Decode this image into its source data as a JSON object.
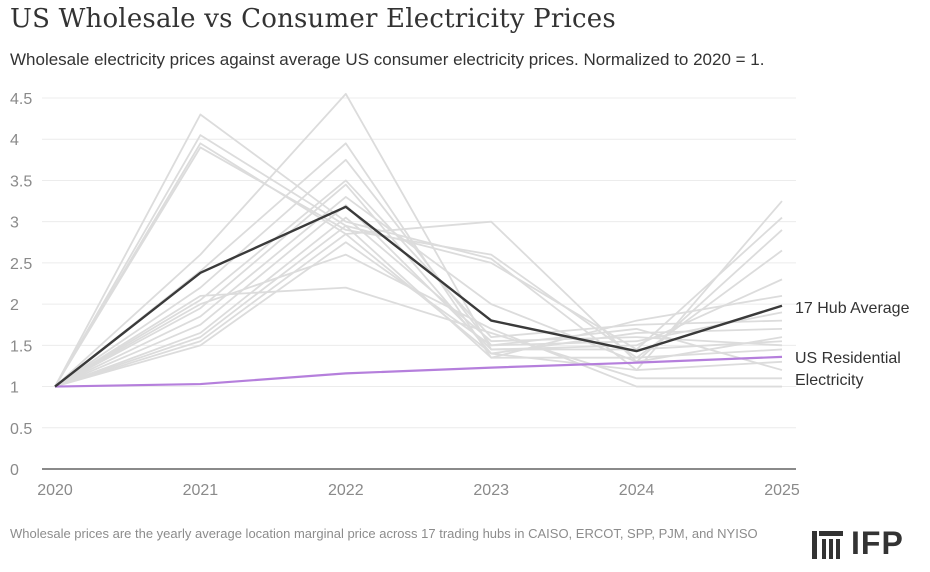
{
  "header": {
    "title": "US Wholesale vs Consumer Electricity Prices",
    "subtitle": "Wholesale electricity prices against average US consumer electricity prices. Normalized to 2020 = 1."
  },
  "footer": {
    "note": "Wholesale prices are the yearly average location marginal price across 17 trading hubs in CAISO, ERCOT, SPP, PJM, and NYISO",
    "logo": "IFP"
  },
  "colors": {
    "hub_lines": "#dcdcdc",
    "average": "#3a3a3a",
    "residential": "#b57fdc",
    "axis_text": "#8a8a8a",
    "grid": "#ececec"
  },
  "chart_data": {
    "type": "line",
    "title": "US Wholesale vs Consumer Electricity Prices",
    "x": [
      "2020",
      "2021",
      "2022",
      "2023",
      "2024",
      "2025"
    ],
    "ylim": [
      0,
      4.5
    ],
    "yticks": [
      "0",
      "0.5",
      "1",
      "1.5",
      "2",
      "2.5",
      "3",
      "3.5",
      "4",
      "4.5"
    ],
    "ytick_values": [
      0,
      0.5,
      1,
      1.5,
      2,
      2.5,
      3,
      3.5,
      4,
      4.5
    ],
    "grid": true,
    "hubs": [
      [
        1,
        4.3,
        3.0,
        2.55,
        1.2,
        3.25
      ],
      [
        1,
        4.05,
        2.95,
        2.5,
        1.45,
        3.05
      ],
      [
        1,
        3.95,
        2.85,
        3.0,
        1.3,
        2.9
      ],
      [
        1,
        3.9,
        2.9,
        2.6,
        1.35,
        2.65
      ],
      [
        1,
        2.6,
        4.55,
        1.45,
        1.5,
        2.3
      ],
      [
        1,
        2.4,
        3.95,
        1.35,
        1.8,
        2.1
      ],
      [
        1,
        2.2,
        3.75,
        1.5,
        1.55,
        1.9
      ],
      [
        1,
        2.05,
        3.5,
        1.6,
        1.75,
        1.8
      ],
      [
        1,
        1.95,
        3.45,
        1.4,
        1.65,
        1.7
      ],
      [
        1,
        1.85,
        3.3,
        2.0,
        1.3,
        1.6
      ],
      [
        1,
        1.75,
        3.2,
        1.45,
        1.45,
        1.55
      ],
      [
        1,
        1.65,
        3.05,
        1.55,
        1.6,
        1.5
      ],
      [
        1,
        1.6,
        2.95,
        1.35,
        1.35,
        1.45
      ],
      [
        1,
        1.55,
        2.85,
        1.4,
        1.2,
        1.3
      ],
      [
        1,
        1.5,
        2.75,
        1.5,
        1.7,
        1.2
      ],
      [
        1,
        2.0,
        2.6,
        1.7,
        1.0,
        1.0
      ],
      [
        1,
        2.1,
        2.2,
        1.65,
        1.1,
        1.1
      ]
    ],
    "series": [
      {
        "name": "17 Hub Average",
        "values": [
          1,
          2.38,
          3.18,
          1.8,
          1.43,
          1.98
        ]
      },
      {
        "name": "US Residential Electricity",
        "label_lines": [
          "US Residential",
          "Electricity"
        ],
        "values": [
          1,
          1.03,
          1.16,
          1.23,
          1.29,
          1.36
        ]
      }
    ]
  }
}
